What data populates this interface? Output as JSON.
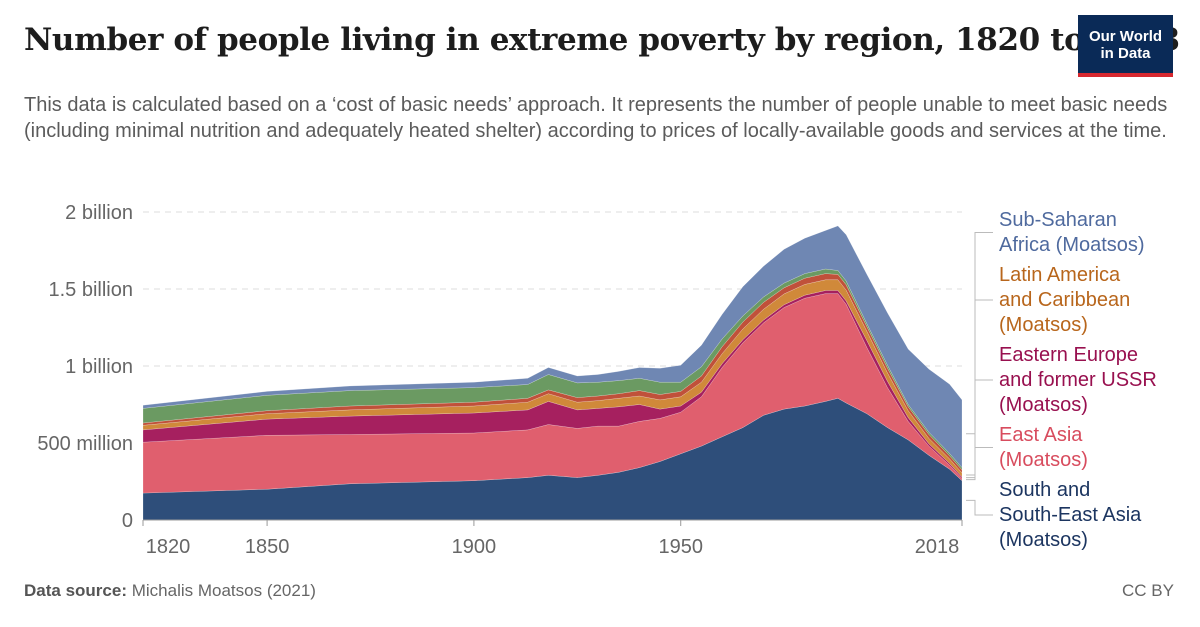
{
  "header": {
    "title": "Number of people living in extreme poverty by region, 1820 to 2018",
    "subtitle": "This data is calculated based on a ‘cost of basic needs’ approach. It represents the number of people unable to meet basic needs (including minimal nutrition and adequately heated shelter) according to prices of locally-available goods and services at the time.",
    "logo_line1": "Our World",
    "logo_line2": "in Data"
  },
  "footer": {
    "source_label": "Data source:",
    "source_text": "Michalis Moatsos (2021)",
    "license": "CC BY"
  },
  "colors": {
    "south_asia": "#2e4e7a",
    "east_asia": "#e05f6e",
    "eastern_europe": "#a6205f",
    "latin_america": "#d0893a",
    "mena": "#c0513a",
    "rest": "#6b9a62",
    "africa": "#6f87b3"
  },
  "chart_data": {
    "type": "area",
    "stacked": true,
    "x_ticks": [
      "1820",
      "1850",
      "1900",
      "1950",
      "2018"
    ],
    "x_tick_values": [
      1820,
      1850,
      1900,
      1950,
      2018
    ],
    "y_ticks": [
      "0",
      "500 million",
      "1 billion",
      "1.5 billion",
      "2 billion"
    ],
    "y_tick_values": [
      0,
      500000000,
      1000000000,
      1500000000,
      2000000000
    ],
    "xlim": [
      1820,
      2018
    ],
    "ylim": [
      0,
      2000000000
    ],
    "grid": "horizontal dashed",
    "legend_placement": "right",
    "years": [
      1820,
      1850,
      1870,
      1900,
      1913,
      1918,
      1925,
      1930,
      1935,
      1940,
      1945,
      1950,
      1955,
      1960,
      1965,
      1970,
      1975,
      1980,
      1985,
      1988,
      1990,
      1995,
      2000,
      2005,
      2010,
      2015,
      2018
    ],
    "series": [
      {
        "key": "south_asia",
        "name": "South and South-East Asia (Moatsos)",
        "legend_lines": [
          "South and",
          "South-East Asia",
          "(Moatsos)"
        ],
        "color": "#2e4e7a",
        "values": [
          175,
          200,
          235,
          255,
          275,
          290,
          275,
          290,
          310,
          340,
          380,
          430,
          480,
          540,
          600,
          680,
          720,
          740,
          770,
          790,
          760,
          690,
          600,
          520,
          420,
          330,
          255
        ]
      },
      {
        "key": "east_asia",
        "name": "East Asia (Moatsos)",
        "legend_lines": [
          "East Asia",
          "(Moatsos)"
        ],
        "color": "#e05f6e",
        "values": [
          330,
          350,
          320,
          310,
          310,
          330,
          320,
          320,
          300,
          300,
          280,
          270,
          320,
          450,
          550,
          600,
          660,
          700,
          700,
          680,
          640,
          430,
          260,
          120,
          60,
          25,
          15
        ]
      },
      {
        "key": "eastern_europe",
        "name": "Eastern Europe and former USSR (Moatsos)",
        "legend_lines": [
          "Eastern Europe",
          "and former USSR",
          "(Moatsos)"
        ],
        "color": "#a6205f",
        "values": [
          80,
          105,
          120,
          130,
          130,
          150,
          120,
          115,
          125,
          110,
          60,
          40,
          30,
          25,
          20,
          18,
          18,
          20,
          20,
          20,
          22,
          45,
          40,
          25,
          15,
          12,
          10
        ]
      },
      {
        "key": "latin_america",
        "name": "Latin America and Caribbean (Moatsos)",
        "legend_lines": [
          "Latin America",
          "and Caribbean",
          "(Moatsos)"
        ],
        "color": "#d0893a",
        "values": [
          30,
          35,
          40,
          45,
          50,
          50,
          50,
          50,
          55,
          55,
          60,
          60,
          65,
          65,
          70,
          70,
          70,
          70,
          70,
          70,
          70,
          60,
          55,
          45,
          35,
          30,
          25
        ]
      },
      {
        "key": "mena",
        "name": "",
        "color": "#c0513a",
        "values": [
          15,
          20,
          25,
          25,
          25,
          25,
          30,
          30,
          30,
          35,
          35,
          35,
          40,
          45,
          45,
          45,
          40,
          40,
          40,
          35,
          35,
          30,
          30,
          25,
          25,
          20,
          20
        ]
      },
      {
        "key": "rest",
        "name": "",
        "color": "#6b9a62",
        "values": [
          95,
          100,
          100,
          95,
          90,
          100,
          95,
          90,
          85,
          80,
          80,
          60,
          60,
          50,
          40,
          35,
          30,
          30,
          30,
          25,
          25,
          20,
          20,
          15,
          15,
          15,
          15
        ]
      },
      {
        "key": "africa",
        "name": "Sub-Saharan Africa (Moatsos)",
        "legend_lines": [
          "Sub-Saharan",
          "Africa (Moatsos)"
        ],
        "color": "#6f87b3",
        "values": [
          20,
          25,
          30,
          35,
          40,
          45,
          45,
          50,
          60,
          70,
          90,
          110,
          140,
          160,
          190,
          200,
          220,
          230,
          250,
          290,
          300,
          320,
          340,
          360,
          410,
          450,
          440
        ]
      }
    ],
    "values_unit": "million people"
  }
}
